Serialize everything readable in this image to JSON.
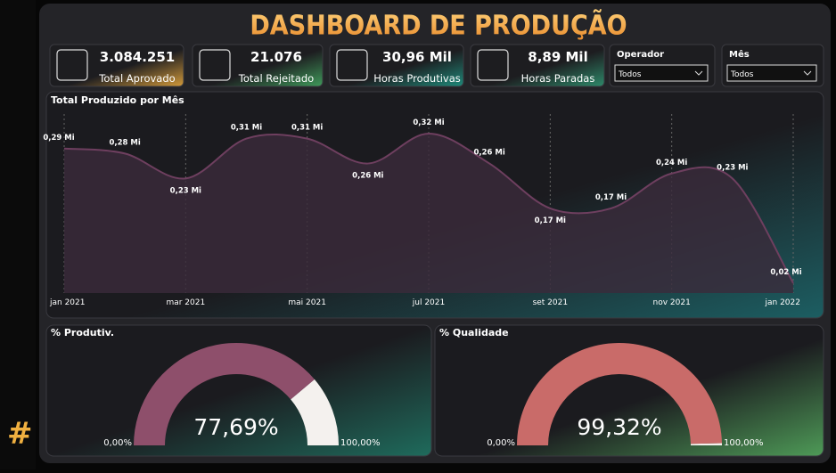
{
  "title": "DASHBOARD DE PRODUÇÃO",
  "kpis": [
    {
      "value": "3.084.251",
      "label": "Total Aprovado"
    },
    {
      "value": "21.076",
      "label": "Total Rejeitado"
    },
    {
      "value": "30,96 Mil",
      "label": "Horas Produtivas"
    },
    {
      "value": "8,89 Mil",
      "label": "Horas Paradas"
    }
  ],
  "filters": [
    {
      "label": "Operador",
      "selected": "Todos"
    },
    {
      "label": "Mês",
      "selected": "Todos"
    }
  ],
  "chart_data": [
    {
      "type": "area",
      "title": "Total Produzido por Mês",
      "color": "#6e3f5f",
      "categories": [
        "jan 2021",
        null,
        "mar 2021",
        null,
        "mai 2021",
        null,
        "jul 2021",
        null,
        "set 2021",
        null,
        "nov 2021",
        null,
        "jan 2022"
      ],
      "values": [
        0.29,
        0.28,
        0.23,
        0.31,
        0.31,
        0.26,
        0.32,
        0.26,
        0.17,
        0.17,
        0.24,
        0.23,
        0.02
      ],
      "value_labels": [
        "0,29 Mi",
        "0,28 Mi",
        "0,23 Mi",
        "0,31 Mi",
        "0,31 Mi",
        "0,26 Mi",
        "0,32 Mi",
        "0,26 Mi",
        "0,17 Mi",
        "0,17 Mi",
        "0,24 Mi",
        "0,23 Mi",
        "0,02 Mi"
      ]
    },
    {
      "type": "gauge",
      "title": "% Produtiv.",
      "value": 77.69,
      "value_label": "77,69%",
      "min": {
        "value": 0,
        "label": "0,00%"
      },
      "max": {
        "value": 100,
        "label": "100,00%"
      },
      "color": "#8e4f6b"
    },
    {
      "type": "gauge",
      "title": "% Qualidade",
      "value": 99.32,
      "value_label": "99,32%",
      "min": {
        "value": 0,
        "label": "0,00%"
      },
      "max": {
        "value": 100,
        "label": "100,00%"
      },
      "color": "#c96b69"
    }
  ]
}
